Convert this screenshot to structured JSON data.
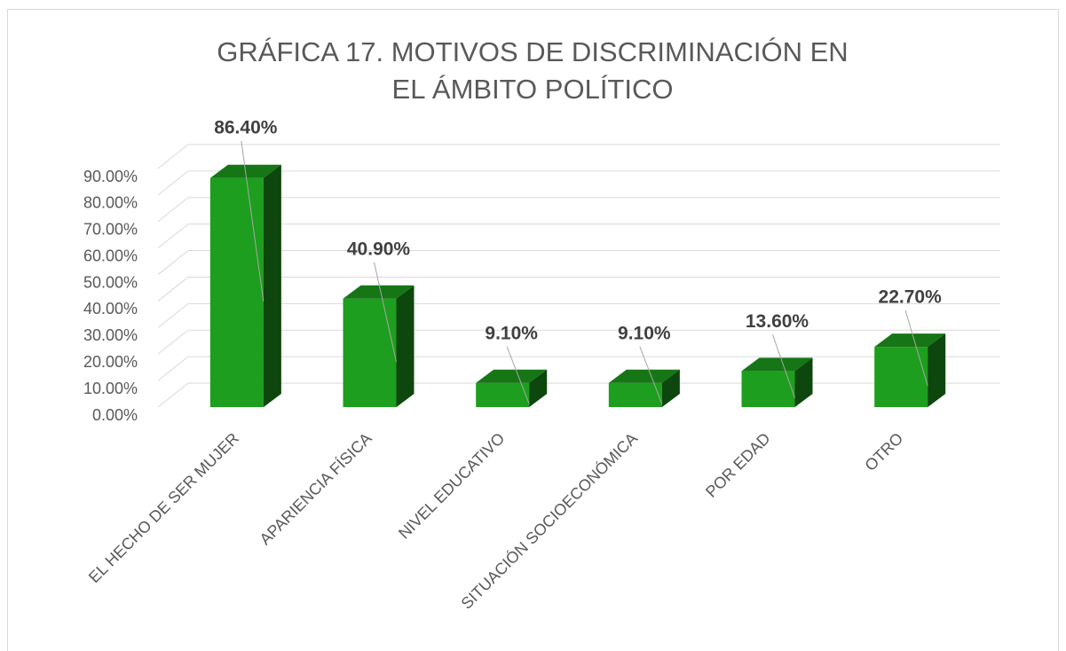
{
  "chart_data": {
    "type": "bar3d",
    "title": "GRÁFICA 17. MOTIVOS DE DISCRIMINACIÓN EN EL ÁMBITO POLÍTICO",
    "categories": [
      "EL HECHO DE SER MUJER",
      "APARIENCIA FÍSICA",
      "NIVEL EDUCATIVO",
      "SITUACIÓN SOCIOECONÓMICA",
      "POR EDAD",
      "OTRO"
    ],
    "values": [
      86.4,
      40.9,
      9.1,
      9.1,
      13.6,
      22.7
    ],
    "value_labels": [
      "86.40%",
      "40.90%",
      "9.10%",
      "9.10%",
      "13.60%",
      "22.70%"
    ],
    "color": "#1e9e1e",
    "ylim": [
      0,
      90
    ],
    "yticks": [
      {
        "value": 0,
        "label": "0.00%"
      },
      {
        "value": 10,
        "label": "10.00%"
      },
      {
        "value": 20,
        "label": "20.00%"
      },
      {
        "value": 30,
        "label": "30.00%"
      },
      {
        "value": 40,
        "label": "40.00%"
      },
      {
        "value": 50,
        "label": "50.00%"
      },
      {
        "value": 60,
        "label": "60.00%"
      },
      {
        "value": 70,
        "label": "70.00%"
      },
      {
        "value": 80,
        "label": "80.00%"
      },
      {
        "value": 90,
        "label": "90.00%"
      }
    ],
    "grid": true
  }
}
